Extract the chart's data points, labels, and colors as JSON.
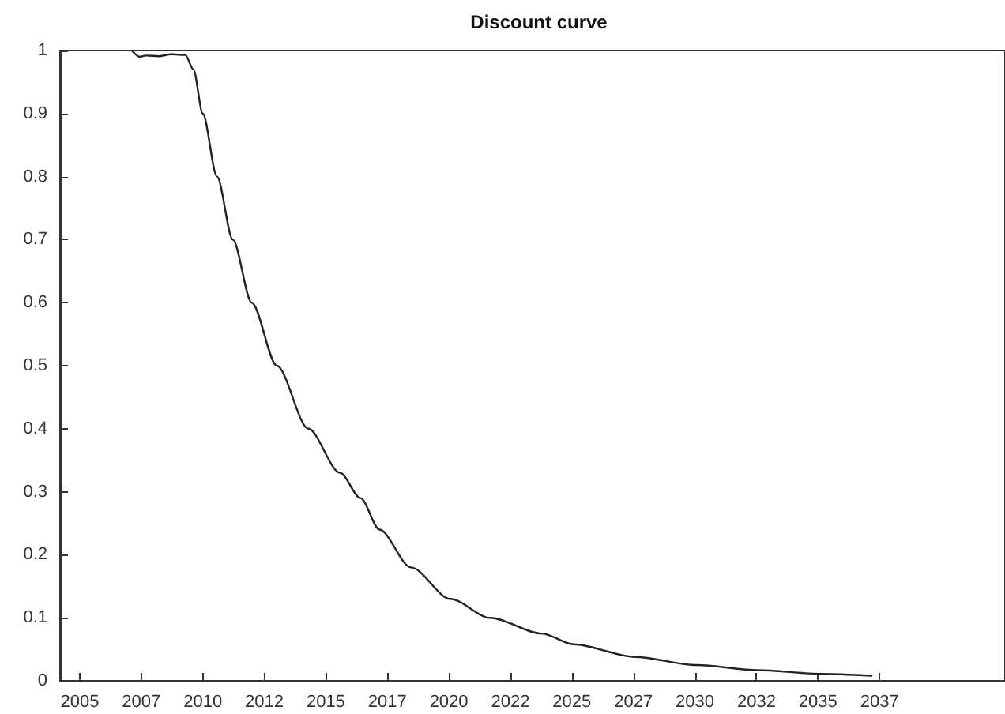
{
  "chart_data": {
    "type": "line",
    "title": "Discount curve",
    "series": [
      {
        "color": "#222222",
        "x": [
          2007.12,
          2007.44,
          2007.69,
          2008.2,
          2008.72,
          2009.29,
          2009.62,
          2010.0,
          2010.58,
          2011.22,
          2011.99,
          2013.01,
          2014.29,
          2015.58,
          2016.41,
          2017.18,
          2018.46,
          2020.06,
          2021.67,
          2023.78,
          2025.06,
          2027.56,
          2030.06,
          2032.56,
          2035.13,
          2037.18
        ],
        "values": [
          1.0,
          0.99,
          0.992,
          0.991,
          0.994,
          0.993,
          0.97,
          0.9,
          0.8,
          0.7,
          0.6,
          0.5,
          0.4,
          0.33,
          0.29,
          0.24,
          0.18,
          0.13,
          0.1,
          0.075,
          0.058,
          0.038,
          0.025,
          0.017,
          0.011,
          0.008
        ]
      }
    ],
    "xlim": [
      2004.2,
      2042.6
    ],
    "xticks": [
      {
        "value": 2005,
        "label": "2005"
      },
      {
        "value": 2007.5,
        "label": "2007"
      },
      {
        "value": 2010,
        "label": "2010"
      },
      {
        "value": 2012.5,
        "label": "2012"
      },
      {
        "value": 2015,
        "label": "2015"
      },
      {
        "value": 2017.5,
        "label": "2017"
      },
      {
        "value": 2020,
        "label": "2020"
      },
      {
        "value": 2022.5,
        "label": "2022"
      },
      {
        "value": 2025,
        "label": "2025"
      },
      {
        "value": 2027.5,
        "label": "2027"
      },
      {
        "value": 2030,
        "label": "2030"
      },
      {
        "value": 2032.5,
        "label": "2032"
      },
      {
        "value": 2035,
        "label": "2035"
      },
      {
        "value": 2037.5,
        "label": "2037"
      }
    ],
    "ylim": [
      0,
      1
    ],
    "yticks": [
      0,
      {
        "value": 0.1,
        "label": "0.1"
      },
      {
        "value": 0.2,
        "label": "0.2"
      },
      {
        "value": 0.3,
        "label": "0.3"
      },
      {
        "value": 0.4,
        "label": "0.4"
      },
      {
        "value": 0.5,
        "label": "0.5"
      },
      {
        "value": 0.6,
        "label": "0.6"
      },
      {
        "value": 0.7,
        "label": "0.7"
      },
      {
        "value": 0.8,
        "label": "0.8"
      },
      {
        "value": 0.9,
        "label": "0.9"
      },
      1
    ],
    "grid": false,
    "marker": "none",
    "line_style": "solid"
  }
}
